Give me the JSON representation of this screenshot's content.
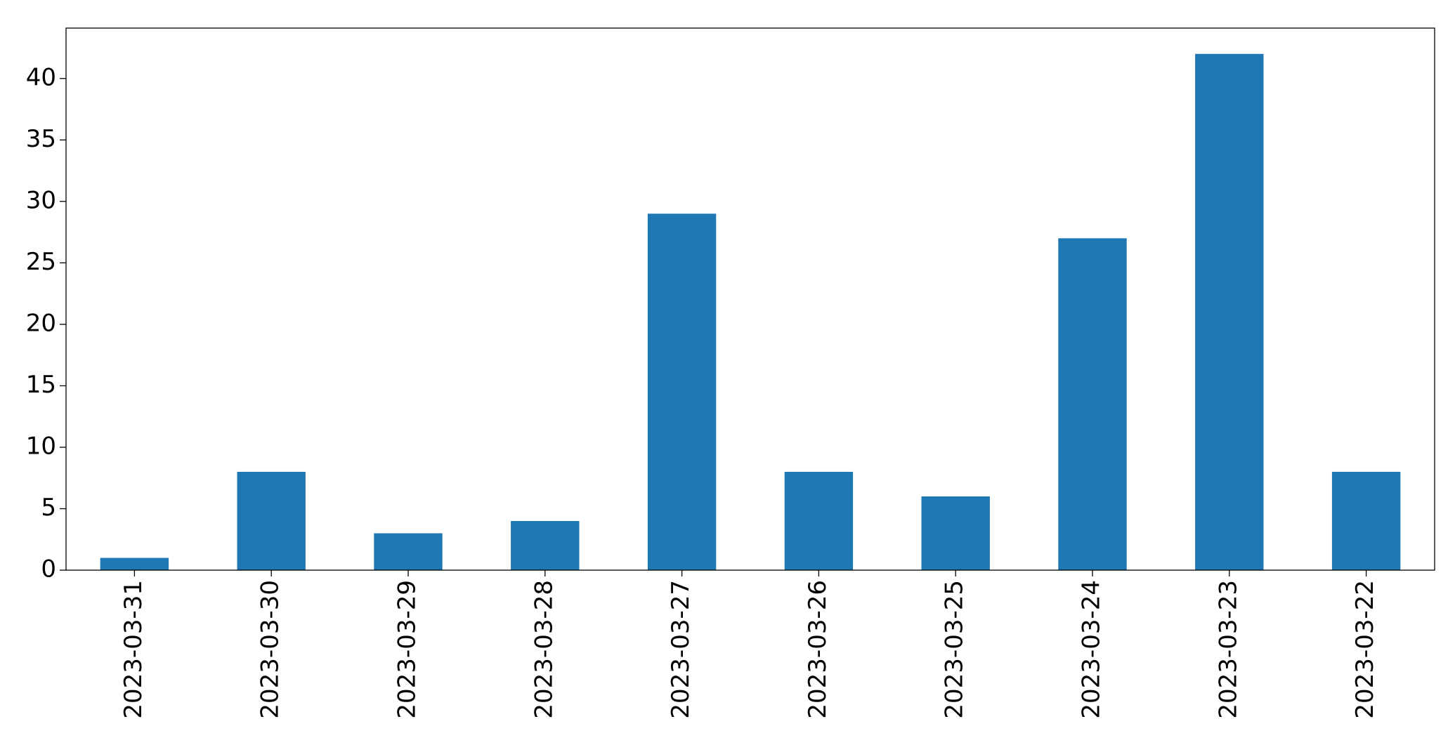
{
  "chart_data": {
    "type": "bar",
    "categories": [
      "2023-03-31",
      "2023-03-30",
      "2023-03-29",
      "2023-03-28",
      "2023-03-27",
      "2023-03-26",
      "2023-03-25",
      "2023-03-24",
      "2023-03-23",
      "2023-03-22"
    ],
    "values": [
      1,
      8,
      3,
      4,
      29,
      8,
      6,
      27,
      42,
      8
    ],
    "color": "#1f77b4",
    "ylim": [
      0,
      44.1
    ],
    "yticks": [
      0,
      5,
      10,
      15,
      20,
      25,
      30,
      35,
      40
    ],
    "grid": false
  }
}
